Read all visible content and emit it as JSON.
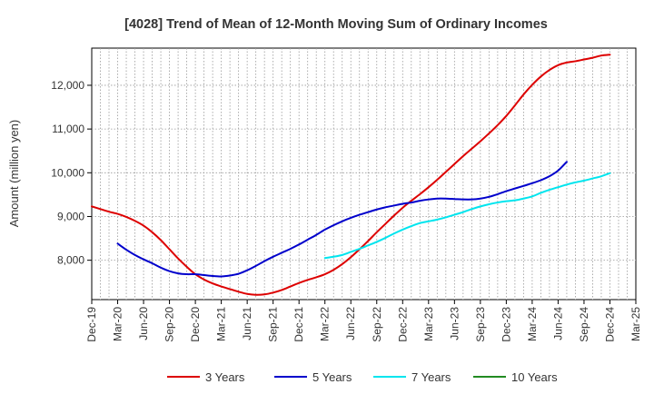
{
  "chart_data": {
    "type": "line",
    "title": "[4028]  Trend of Mean of 12-Month Moving Sum of Ordinary Incomes",
    "ylabel": "Amount (million yen)",
    "xlabel": "",
    "ylim": [
      7100,
      12850
    ],
    "yticks": [
      8000,
      9000,
      10000,
      11000,
      12000
    ],
    "ytick_labels": [
      "8,000",
      "9,000",
      "10,000",
      "11,000",
      "12,000"
    ],
    "x_tick_labels": [
      "Dec-19",
      "Mar-20",
      "Jun-20",
      "Sep-20",
      "Dec-20",
      "Mar-21",
      "Jun-21",
      "Sep-21",
      "Dec-21",
      "Mar-22",
      "Jun-22",
      "Sep-22",
      "Dec-22",
      "Mar-23",
      "Jun-23",
      "Sep-23",
      "Dec-23",
      "Mar-24",
      "Jun-24",
      "Sep-24",
      "Dec-24",
      "Mar-25"
    ],
    "x_months": [
      "2019-12",
      "2020-01",
      "2020-02",
      "2020-03",
      "2020-04",
      "2020-05",
      "2020-06",
      "2020-07",
      "2020-08",
      "2020-09",
      "2020-10",
      "2020-11",
      "2020-12",
      "2021-01",
      "2021-02",
      "2021-03",
      "2021-04",
      "2021-05",
      "2021-06",
      "2021-07",
      "2021-08",
      "2021-09",
      "2021-10",
      "2021-11",
      "2021-12",
      "2022-01",
      "2022-02",
      "2022-03",
      "2022-04",
      "2022-05",
      "2022-06",
      "2022-07",
      "2022-08",
      "2022-09",
      "2022-10",
      "2022-11",
      "2022-12",
      "2023-01",
      "2023-02",
      "2023-03",
      "2023-04",
      "2023-05",
      "2023-06",
      "2023-07",
      "2023-08",
      "2023-09",
      "2023-10",
      "2023-11",
      "2023-12",
      "2024-01",
      "2024-02",
      "2024-03",
      "2024-04",
      "2024-05",
      "2024-06",
      "2024-07",
      "2024-08",
      "2024-09",
      "2024-10",
      "2024-11",
      "2024-12"
    ],
    "series": [
      {
        "name": "3 Years",
        "color": "#dd0000",
        "start_index": 0,
        "values": [
          9230,
          9170,
          9110,
          9060,
          8990,
          8900,
          8790,
          8640,
          8460,
          8250,
          8040,
          7850,
          7680,
          7560,
          7470,
          7400,
          7340,
          7280,
          7230,
          7210,
          7220,
          7260,
          7320,
          7400,
          7480,
          7550,
          7610,
          7680,
          7780,
          7910,
          8070,
          8250,
          8440,
          8640,
          8830,
          9020,
          9200,
          9360,
          9510,
          9670,
          9840,
          10020,
          10200,
          10380,
          10550,
          10720,
          10900,
          11090,
          11300,
          11540,
          11790,
          12010,
          12200,
          12350,
          12460,
          12520,
          12550,
          12590,
          12630,
          12680,
          12700
        ]
      },
      {
        "name": "5 Years",
        "color": "#0000cc",
        "start_index": 3,
        "values": [
          8380,
          8240,
          8120,
          8020,
          7930,
          7830,
          7750,
          7700,
          7680,
          7680,
          7660,
          7640,
          7630,
          7650,
          7690,
          7770,
          7870,
          7980,
          8080,
          8170,
          8260,
          8360,
          8470,
          8580,
          8700,
          8800,
          8890,
          8970,
          9040,
          9100,
          9160,
          9210,
          9250,
          9290,
          9320,
          9360,
          9390,
          9410,
          9410,
          9400,
          9390,
          9390,
          9410,
          9450,
          9510,
          9580,
          9640,
          9700,
          9760,
          9830,
          9920,
          10050,
          10250
        ]
      },
      {
        "name": "7 Years",
        "color": "#00e5ee",
        "start_index": 27,
        "values": [
          8050,
          8080,
          8120,
          8190,
          8260,
          8340,
          8420,
          8510,
          8610,
          8700,
          8780,
          8850,
          8890,
          8930,
          8980,
          9040,
          9100,
          9170,
          9230,
          9280,
          9320,
          9350,
          9370,
          9410,
          9460,
          9540,
          9610,
          9670,
          9730,
          9780,
          9820,
          9870,
          9920,
          9990
        ]
      },
      {
        "name": "10 Years",
        "color": "#228b22",
        "start_index": 0,
        "values": []
      }
    ],
    "legend": [
      "3 Years",
      "5 Years",
      "7 Years",
      "10 Years"
    ],
    "legend_position": "bottom",
    "grid": true
  }
}
